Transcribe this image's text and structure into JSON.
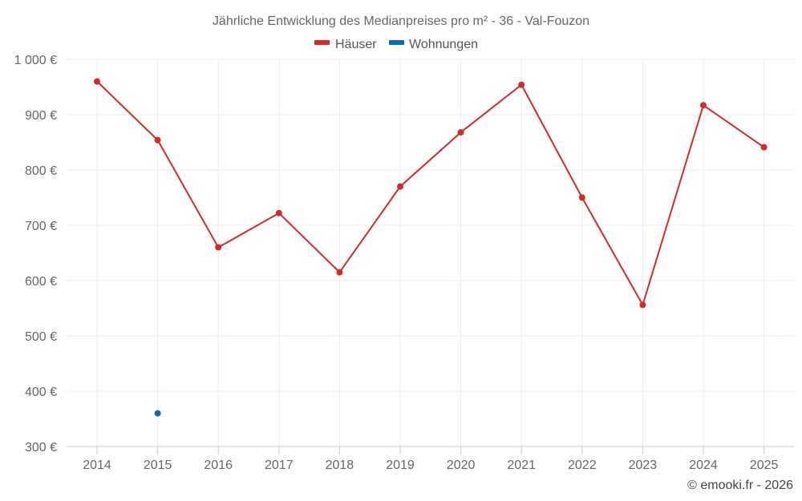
{
  "chart_data": {
    "type": "line",
    "title": "Jährliche Entwicklung des Medianpreises pro m² - 36 - Val-Fouzon",
    "categories": [
      "2014",
      "2015",
      "2016",
      "2017",
      "2018",
      "2019",
      "2020",
      "2021",
      "2022",
      "2023",
      "2024",
      "2025"
    ],
    "series": [
      {
        "name": "Häuser",
        "color": "#d42a2a",
        "values": [
          960,
          854,
          660,
          722,
          615,
          770,
          868,
          954,
          750,
          556,
          917,
          841
        ]
      },
      {
        "name": "Wohnungen",
        "color": "#0f6aa6",
        "values": [
          null,
          360,
          null,
          null,
          null,
          null,
          null,
          null,
          null,
          null,
          null,
          null
        ]
      }
    ],
    "ylim": [
      300,
      1000
    ],
    "yticks": [
      300,
      400,
      500,
      600,
      700,
      800,
      900,
      1000
    ],
    "ytick_labels": [
      "300 €",
      "400 €",
      "500 €",
      "600 €",
      "700 €",
      "800 €",
      "900 €",
      "1 000 €"
    ],
    "xlabel": "",
    "ylabel": "",
    "grid": true,
    "legend": "top-center"
  },
  "footer": "© emooki.fr - 2026"
}
